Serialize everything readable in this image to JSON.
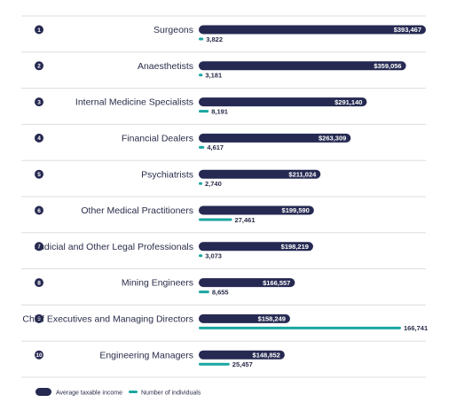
{
  "colors": {
    "income": "#262a52",
    "individuals": "#1aa6a0",
    "divider": "#dddddd",
    "text": "#2a2d4a"
  },
  "chart_data": {
    "type": "bar",
    "title": "",
    "xlabel": "",
    "ylabel": "",
    "grid": false,
    "legend_position": "bottom-left",
    "categories": [
      "Surgeons",
      "Anaesthetists",
      "Internal Medicine Specialists",
      "Financial Dealers",
      "Psychiatrists",
      "Other Medical Practitioners",
      "Judicial and Other Legal Professionals",
      "Mining Engineers",
      "Chief Executives and Managing Directors",
      "Engineering Managers"
    ],
    "ranks": [
      "1",
      "2",
      "3",
      "4",
      "5",
      "6",
      "7",
      "8",
      "9",
      "10"
    ],
    "series": [
      {
        "name": "Average taxable income",
        "values": [
          393467,
          359056,
          291140,
          263309,
          211024,
          199590,
          198219,
          166557,
          158249,
          148852
        ],
        "labels": [
          "$393,467",
          "$359,056",
          "$291,140",
          "$263,309",
          "$211,024",
          "$199,590",
          "$198,219",
          "$166,557",
          "$158,249",
          "$148,852"
        ],
        "max": 393467
      },
      {
        "name": "Number of individuals",
        "values": [
          3822,
          3181,
          8191,
          4617,
          2740,
          27461,
          3073,
          8655,
          166741,
          25457
        ],
        "labels": [
          "3,822",
          "3,181",
          "8,191",
          "4,617",
          "2,740",
          "27,461",
          "3,073",
          "8,655",
          "166,741",
          "25,457"
        ],
        "max": 166741
      }
    ]
  },
  "legend": {
    "income_label": "Average taxable income",
    "individuals_label": "Number of individuals"
  }
}
